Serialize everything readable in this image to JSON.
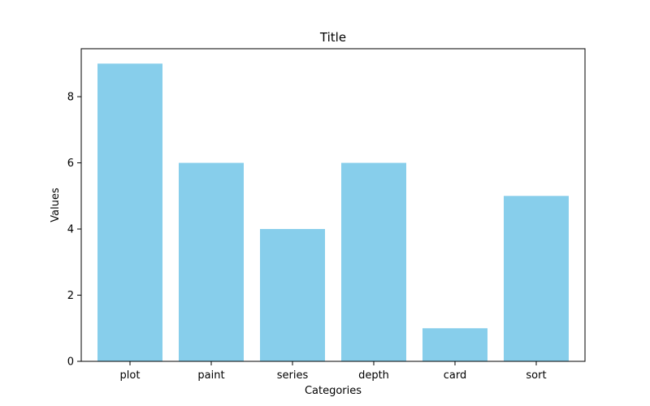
{
  "chart_data": {
    "type": "bar",
    "title": "Title",
    "xlabel": "Categories",
    "ylabel": "Values",
    "categories": [
      "plot",
      "paint",
      "series",
      "depth",
      "card",
      "sort"
    ],
    "values": [
      9,
      6,
      4,
      6,
      1,
      5
    ],
    "ylim": [
      0,
      9.45
    ],
    "yticks": [
      0,
      2,
      4,
      6,
      8
    ],
    "grid": false,
    "bar_color": "#87CEEB",
    "axis_color": "#000000"
  }
}
